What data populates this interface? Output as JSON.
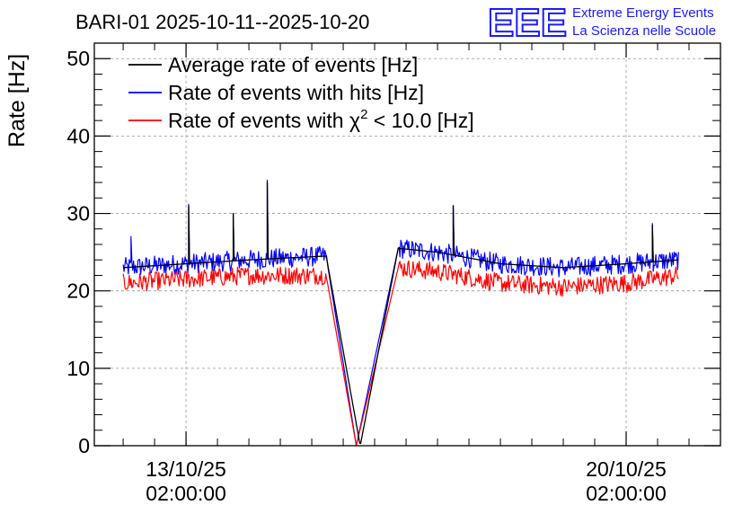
{
  "chart_data": {
    "type": "line",
    "title": "BARI-01 2025-10-11--2025-10-20",
    "ylabel": "Rate [Hz]",
    "xlabel": "",
    "ylim": [
      0,
      52
    ],
    "yticks": [
      0,
      10,
      20,
      30,
      40,
      50
    ],
    "grid": true,
    "legend_position": "top-left",
    "x_range": [
      "2025-10-11T15:00:00",
      "2025-10-21T14:00:00"
    ],
    "x_ticks": [
      {
        "x": "2025-10-13T02:00:00",
        "date_label": "13/10/25",
        "time_label": "02:00:00"
      },
      {
        "x": "2025-10-20T02:00:00",
        "date_label": "20/10/25",
        "time_label": "02:00:00"
      }
    ],
    "gap": {
      "start": "2025-10-15T08:00:00",
      "minimum": "2025-10-15T20:30:00",
      "end": "2025-10-16T11:00:00"
    },
    "series": [
      {
        "name": "Average rate of events [Hz]",
        "color": "#000000",
        "x": [
          "2025-10-12T02:00:00",
          "2025-10-13T02:00:00",
          "2025-10-14T02:00:00",
          "2025-10-15T07:30:00",
          "2025-10-15T20:30:00",
          "2025-10-16T11:00:00",
          "2025-10-17T02:00:00",
          "2025-10-18T02:00:00",
          "2025-10-19T02:00:00",
          "2025-10-20T02:00:00",
          "2025-10-20T22:00:00"
        ],
        "values": [
          23,
          23.5,
          24,
          24.5,
          0,
          25.5,
          25,
          23.5,
          23,
          23.5,
          24
        ],
        "spikes": [
          {
            "x": "2025-10-13T03:00:00",
            "value": 31
          },
          {
            "x": "2025-10-13T20:00:00",
            "value": 30
          },
          {
            "x": "2025-10-14T09:00:00",
            "value": 34
          },
          {
            "x": "2025-10-17T08:00:00",
            "value": 31
          },
          {
            "x": "2025-10-20T12:00:00",
            "value": 28.5
          }
        ]
      },
      {
        "name": "Rate of events with hits [Hz]",
        "color": "#0000ff",
        "x": [
          "2025-10-12T02:00:00",
          "2025-10-13T02:00:00",
          "2025-10-14T02:00:00",
          "2025-10-15T07:30:00",
          "2025-10-15T19:00:00",
          "2025-10-16T11:00:00",
          "2025-10-17T02:00:00",
          "2025-10-18T02:00:00",
          "2025-10-19T02:00:00",
          "2025-10-20T02:00:00",
          "2025-10-20T22:00:00"
        ],
        "values": [
          23,
          23.5,
          24,
          24.5,
          0,
          25.5,
          25,
          23.5,
          23,
          23.5,
          24
        ],
        "band": 1.3,
        "spikes": [
          {
            "x": "2025-10-12T05:00:00",
            "value": 27
          },
          {
            "x": "2025-10-13T03:00:00",
            "value": 31.2
          },
          {
            "x": "2025-10-13T20:00:00",
            "value": 30
          },
          {
            "x": "2025-10-14T09:00:00",
            "value": 34.3
          },
          {
            "x": "2025-10-17T08:00:00",
            "value": 31
          },
          {
            "x": "2025-10-20T12:00:00",
            "value": 28.7
          }
        ]
      },
      {
        "name": "Rate of events with χ² < 10.0 [Hz]",
        "color": "#ff0000",
        "x": [
          "2025-10-12T02:00:00",
          "2025-10-13T02:00:00",
          "2025-10-14T02:00:00",
          "2025-10-15T07:30:00",
          "2025-10-15T19:00:00",
          "2025-10-16T11:00:00",
          "2025-10-17T02:00:00",
          "2025-10-18T02:00:00",
          "2025-10-19T02:00:00",
          "2025-10-20T02:00:00",
          "2025-10-20T22:00:00"
        ],
        "values": [
          21,
          21.5,
          22,
          22,
          0,
          23,
          22.5,
          21,
          20.5,
          21,
          22
        ],
        "band": 1.2,
        "spikes": []
      }
    ]
  },
  "legend": {
    "series0": "Average rate of events [Hz]",
    "series1": "Rate of events with hits [Hz]",
    "series2_prefix": "Rate of events with ",
    "series2_symbol": "χ",
    "series2_power": "2",
    "series2_suffix": " < 10.0 [Hz]"
  },
  "logo": {
    "mark": "EEE",
    "line1": "Extreme Energy Events",
    "line2": "La Scienza nelle Scuole",
    "color": "#1a1aff"
  }
}
